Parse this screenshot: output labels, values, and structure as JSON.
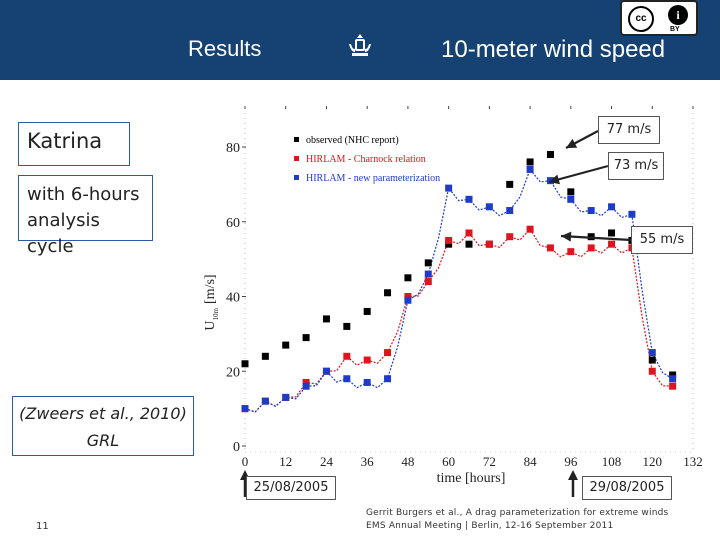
{
  "header": {
    "left_title": "Results",
    "right_title": "10-meter wind speed",
    "license_cc": "cc",
    "license_by": "BY"
  },
  "boxes": {
    "katrina": "Katrina",
    "cycle_line1": "with 6-hours",
    "cycle_line2": "analysis cycle",
    "ref_line1": "(Zweers et al., 2010)",
    "ref_line2": "GRL",
    "label_77": "77 m/s",
    "label_73": "73 m/s",
    "label_55": "55 m/s",
    "date_start": "25/08/2005",
    "date_end": "29/08/2005"
  },
  "footer": {
    "slide_number": "11",
    "credit_line1": "Gerrit Burgers et al., A drag parameterization for extreme winds",
    "credit_line2": "EMS Annual Meeting | Berlin, 12-16 September 2011"
  },
  "colors": {
    "header_bg": "#154273",
    "observed": "#000000",
    "charnock": "#e0141e",
    "new_param": "#1e3cc8",
    "box_border": "#2f58a5"
  },
  "chart_data": {
    "type": "scatter",
    "xlabel": "time [hours]",
    "ylabel": "U",
    "ylabel_sub": "10m",
    "ylabel_unit": "[m/s]",
    "xlim": [
      0,
      132
    ],
    "ylim": [
      0,
      85
    ],
    "x_ticks": [
      0,
      12,
      24,
      36,
      48,
      60,
      72,
      84,
      96,
      108,
      120,
      132
    ],
    "y_ticks": [
      0,
      20,
      40,
      60,
      80
    ],
    "legend": [
      "observed (NHC report)",
      "HIRLAM - Charnock relation",
      "HIRLAM - new parameterization"
    ],
    "series": [
      {
        "name": "observed (NHC report)",
        "x": [
          0,
          6,
          12,
          18,
          24,
          30,
          36,
          42,
          48,
          54,
          60,
          66,
          72,
          78,
          84,
          90,
          96,
          102,
          108,
          114,
          120,
          126
        ],
        "y": [
          22,
          24,
          27,
          29,
          34,
          32,
          36,
          41,
          45,
          49,
          54,
          54,
          54,
          70,
          76,
          78,
          68,
          56,
          57,
          55,
          23,
          19
        ]
      },
      {
        "name": "HIRLAM - Charnock relation",
        "x": [
          0,
          6,
          12,
          18,
          24,
          30,
          36,
          42,
          48,
          54,
          60,
          66,
          72,
          78,
          84,
          90,
          96,
          102,
          108,
          114,
          120,
          126
        ],
        "y": [
          10,
          12,
          13,
          17,
          20,
          24,
          23,
          25,
          40,
          44,
          55,
          57,
          54,
          56,
          58,
          53,
          52,
          53,
          54,
          53,
          20,
          16
        ]
      },
      {
        "name": "HIRLAM - new parameterization",
        "x": [
          0,
          6,
          12,
          18,
          24,
          30,
          36,
          42,
          48,
          54,
          60,
          66,
          72,
          78,
          84,
          90,
          96,
          102,
          108,
          114,
          120,
          126
        ],
        "y": [
          10,
          12,
          13,
          16,
          20,
          18,
          17,
          18,
          39,
          46,
          69,
          66,
          64,
          63,
          74,
          71,
          66,
          63,
          64,
          62,
          25,
          18
        ]
      }
    ]
  }
}
